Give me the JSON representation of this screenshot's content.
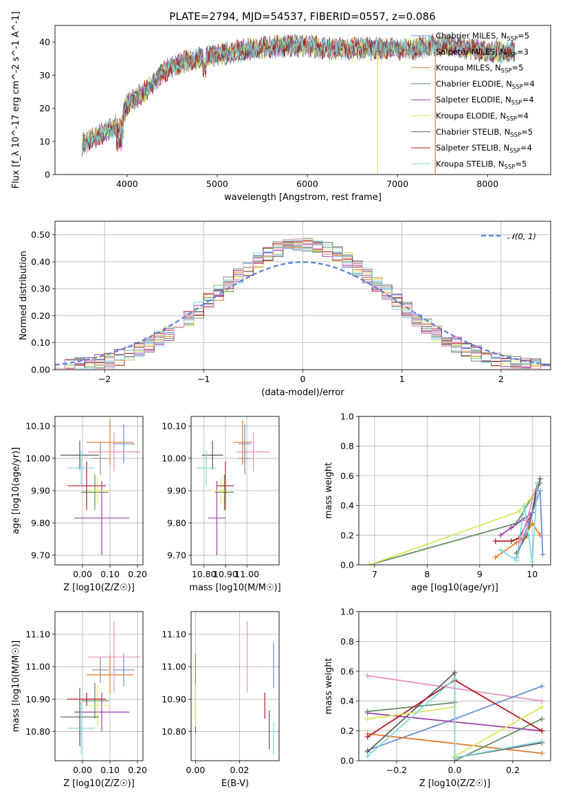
{
  "figure": {
    "title": "PLATE=2794, MJD=54537, FIBERID=0557, z=0.086"
  },
  "colors": {
    "c1": "#6a8fd6",
    "c2": "#8a8a8a",
    "c3": "#e07a2a",
    "c4": "#5e8e5e",
    "c5": "#9e3aaa",
    "c6": "#d6e85a",
    "c7": "#5a5a5a",
    "c8": "#b0181e",
    "c9": "#80d8dc",
    "c10": "#e890c0",
    "normal": "#5b82d6"
  },
  "chart_data": [
    {
      "id": "spectrum",
      "type": "line",
      "xlabel": "wavelength [Angstrom, rest frame]",
      "ylabel": "Flux [f_λ 10^-17 erg cm^-2 s^-1 A^-1]",
      "xlim": [
        3200,
        8700
      ],
      "ylim": [
        0,
        45
      ],
      "xticks": [
        4000,
        5000,
        6000,
        7000,
        8000
      ],
      "yticks": [
        0,
        10,
        20,
        30,
        40
      ],
      "x_range": [
        3500,
        8300
      ],
      "continuum": {
        "x": [
          3500,
          3700,
          3900,
          4000,
          4200,
          4400,
          4600,
          4800,
          5000,
          5200,
          5400,
          5600,
          5800,
          6000,
          6200,
          6400,
          6600,
          6800,
          7000,
          7200,
          7400,
          7600,
          7800,
          8000,
          8200,
          8300
        ],
        "y": [
          9,
          12,
          15,
          21,
          25,
          31,
          34,
          35,
          36,
          37,
          38,
          38.5,
          39,
          39,
          38,
          38,
          38,
          38,
          38,
          38,
          39,
          39,
          38,
          37,
          37,
          37
        ]
      },
      "legend": [
        {
          "label": "Chabrier MILES, N",
          "sub": "SSP",
          "suffix": "=5",
          "color": "c1"
        },
        {
          "label": "Salpeter MILES, N",
          "sub": "SSP",
          "suffix": "=3",
          "color": "c2"
        },
        {
          "label": "Kroupa MILES, N",
          "sub": "SSP",
          "suffix": "=5",
          "color": "c3"
        },
        {
          "label": "Chabrier ELODIE, N",
          "sub": "SSP",
          "suffix": "=4",
          "color": "c4"
        },
        {
          "label": "Salpeter ELODIE, N",
          "sub": "SSP",
          "suffix": "=4",
          "color": "c5"
        },
        {
          "label": "Kroupa ELODIE, N",
          "sub": "SSP",
          "suffix": "=4",
          "color": "c6"
        },
        {
          "label": "Chabrier STELIB, N",
          "sub": "SSP",
          "suffix": "=5",
          "color": "c7"
        },
        {
          "label": "Salpeter STELIB, N",
          "sub": "SSP",
          "suffix": "=4",
          "color": "c8"
        },
        {
          "label": "Kroupa STELIB, N",
          "sub": "SSP",
          "suffix": "=5",
          "color": "c9"
        }
      ],
      "dropouts": [
        {
          "x": 6780,
          "color": "c6"
        },
        {
          "x": 7420,
          "color": "c3"
        }
      ]
    },
    {
      "id": "residuals",
      "type": "histogram",
      "xlabel": "(data-model)/error",
      "ylabel": "Normed distribution",
      "xlim": [
        -2.5,
        2.5
      ],
      "ylim": [
        0,
        0.55
      ],
      "xticks": [
        -2,
        -1,
        0,
        1,
        2
      ],
      "yticks": [
        0.0,
        0.1,
        0.2,
        0.3,
        0.4,
        0.5
      ],
      "bins": [
        -2.5,
        2.5,
        50
      ],
      "legend": "𝒩(0, 1)",
      "series_colors": [
        "c1",
        "c2",
        "c3",
        "c4",
        "c5",
        "c6",
        "c7",
        "c8",
        "c9",
        "c10"
      ]
    },
    {
      "id": "age-vs-z",
      "type": "errorbar",
      "xlabel": "Z [log10(Z/Z☉)]",
      "ylabel": "age [log10(age/yr)]",
      "xlim": [
        -0.1,
        0.22
      ],
      "ylim": [
        9.67,
        10.13
      ],
      "xticks": [
        0.0,
        0.1,
        0.2
      ],
      "yticks": [
        9.7,
        9.8,
        9.9,
        10.0,
        10.1
      ],
      "points": [
        {
          "x": 0.15,
          "xerr": 0.04,
          "y": 10.045,
          "yerr": 0.06,
          "color": "c1"
        },
        {
          "x": 0.065,
          "xerr": 0.03,
          "y": 10.0,
          "yerr": 0.05,
          "color": "c2"
        },
        {
          "x": 0.1,
          "xerr": 0.085,
          "y": 10.05,
          "yerr": 0.07,
          "color": "c3"
        },
        {
          "x": 0.045,
          "xerr": 0.05,
          "y": 9.895,
          "yerr": 0.055,
          "color": "c4"
        },
        {
          "x": 0.07,
          "xerr": 0.1,
          "y": 9.815,
          "yerr": 0.115,
          "color": "c5"
        },
        {
          "x": 0.055,
          "xerr": 0.045,
          "y": 9.9,
          "yerr": 0.04,
          "color": "c6"
        },
        {
          "x": -0.01,
          "xerr": 0.07,
          "y": 10.01,
          "yerr": 0.045,
          "color": "c7"
        },
        {
          "x": 0.015,
          "xerr": 0.07,
          "y": 9.915,
          "yerr": 0.075,
          "color": "c8"
        },
        {
          "x": -0.005,
          "xerr": 0.05,
          "y": 9.97,
          "yerr": 0.055,
          "color": "c9"
        },
        {
          "x": 0.115,
          "xerr": 0.095,
          "y": 10.02,
          "yerr": 0.06,
          "color": "c10"
        }
      ]
    },
    {
      "id": "age-vs-mass",
      "type": "errorbar",
      "xlabel": "mass [log10(M/M☉)]",
      "ylabel": "",
      "xlim": [
        10.74,
        11.15
      ],
      "ylim": [
        9.67,
        10.13
      ],
      "xticks": [
        10.8,
        10.9,
        11.0
      ],
      "yticks": [
        9.7,
        9.8,
        9.9,
        10.0,
        10.1
      ],
      "points": [
        {
          "x": 10.99,
          "xerr": 0.03,
          "y": 10.045,
          "yerr": 0.06,
          "color": "c1"
        },
        {
          "x": 10.99,
          "xerr": 0.03,
          "y": 10.0,
          "yerr": 0.05,
          "color": "c2"
        },
        {
          "x": 10.98,
          "xerr": 0.045,
          "y": 10.05,
          "yerr": 0.07,
          "color": "c3"
        },
        {
          "x": 10.895,
          "xerr": 0.045,
          "y": 9.895,
          "yerr": 0.055,
          "color": "c4"
        },
        {
          "x": 10.86,
          "xerr": 0.04,
          "y": 9.815,
          "yerr": 0.115,
          "color": "c5"
        },
        {
          "x": 10.88,
          "xerr": 0.04,
          "y": 9.9,
          "yerr": 0.04,
          "color": "c6"
        },
        {
          "x": 10.84,
          "xerr": 0.05,
          "y": 10.01,
          "yerr": 0.045,
          "color": "c7"
        },
        {
          "x": 10.9,
          "xerr": 0.04,
          "y": 9.915,
          "yerr": 0.075,
          "color": "c8"
        },
        {
          "x": 10.81,
          "xerr": 0.045,
          "y": 9.97,
          "yerr": 0.055,
          "color": "c9"
        },
        {
          "x": 11.03,
          "xerr": 0.08,
          "y": 10.02,
          "yerr": 0.06,
          "color": "c10"
        }
      ]
    },
    {
      "id": "weight-vs-age",
      "type": "line",
      "xlabel": "age [log10(age/yr)]",
      "ylabel": "mass weight",
      "xlim": [
        6.7,
        10.35
      ],
      "ylim": [
        0,
        1
      ],
      "xticks": [
        7,
        8,
        9,
        10
      ],
      "yticks": [
        0.0,
        0.2,
        0.4,
        0.6,
        0.8,
        1.0
      ],
      "series": [
        {
          "color": "c4",
          "x": [
            6.9,
            9.7,
            10.15
          ],
          "y": [
            0.0,
            0.28,
            0.55
          ]
        },
        {
          "color": "c6",
          "x": [
            6.9,
            9.75,
            10.1
          ],
          "y": [
            0.0,
            0.36,
            0.5
          ]
        },
        {
          "color": "c5",
          "x": [
            9.4,
            9.6,
            9.8,
            10.0
          ],
          "y": [
            0.2,
            0.25,
            0.3,
            0.35
          ]
        },
        {
          "color": "c8",
          "x": [
            9.3,
            9.6,
            9.75,
            10.0,
            10.1
          ],
          "y": [
            0.16,
            0.16,
            0.18,
            0.35,
            0.55
          ]
        },
        {
          "color": "c7",
          "x": [
            9.7,
            9.9,
            10.15
          ],
          "y": [
            0.08,
            0.2,
            0.58
          ]
        },
        {
          "color": "c3",
          "x": [
            9.3,
            9.7,
            9.85,
            10.0,
            10.15
          ],
          "y": [
            0.05,
            0.15,
            0.18,
            0.28,
            0.2
          ]
        },
        {
          "color": "c1",
          "x": [
            9.7,
            9.85,
            10.0,
            10.15,
            10.2
          ],
          "y": [
            0.05,
            0.2,
            0.35,
            0.5,
            0.07
          ]
        },
        {
          "color": "c9",
          "x": [
            9.4,
            9.7,
            9.85,
            10.0,
            10.1
          ],
          "y": [
            0.1,
            0.03,
            0.4,
            0.02,
            0.55
          ]
        },
        {
          "color": "c10",
          "x": [
            9.75,
            9.9,
            10.05
          ],
          "y": [
            0.15,
            0.3,
            0.5
          ]
        }
      ]
    },
    {
      "id": "mass-vs-z",
      "type": "errorbar",
      "xlabel": "Z [log10(Z/Z☉)]",
      "ylabel": "mass [log10(M/M☉)]",
      "xlim": [
        -0.1,
        0.22
      ],
      "ylim": [
        10.71,
        11.17
      ],
      "xticks": [
        0.0,
        0.1,
        0.2
      ],
      "yticks": [
        10.8,
        10.9,
        11.0,
        11.1
      ],
      "points": [
        {
          "x": 0.15,
          "xerr": 0.04,
          "y": 10.99,
          "yerr": 0.05,
          "color": "c1"
        },
        {
          "x": 0.065,
          "xerr": 0.03,
          "y": 10.99,
          "yerr": 0.04,
          "color": "c2"
        },
        {
          "x": 0.1,
          "xerr": 0.085,
          "y": 10.975,
          "yerr": 0.06,
          "color": "c3"
        },
        {
          "x": 0.045,
          "xerr": 0.05,
          "y": 10.895,
          "yerr": 0.055,
          "color": "c4"
        },
        {
          "x": 0.07,
          "xerr": 0.1,
          "y": 10.86,
          "yerr": 0.06,
          "color": "c5"
        },
        {
          "x": 0.055,
          "xerr": 0.045,
          "y": 10.88,
          "yerr": 0.065,
          "color": "c6"
        },
        {
          "x": -0.01,
          "xerr": 0.07,
          "y": 10.845,
          "yerr": 0.09,
          "color": "c7"
        },
        {
          "x": 0.015,
          "xerr": 0.07,
          "y": 10.9,
          "yerr": 0.02,
          "color": "c8"
        },
        {
          "x": -0.005,
          "xerr": 0.05,
          "y": 10.81,
          "yerr": 0.08,
          "color": "c9"
        },
        {
          "x": 0.115,
          "xerr": 0.095,
          "y": 11.03,
          "yerr": 0.11,
          "color": "c10"
        }
      ]
    },
    {
      "id": "mass-vs-ebv",
      "type": "errorbar",
      "xlabel": "E(B-V)",
      "ylabel": "",
      "xlim": [
        -0.002,
        0.038
      ],
      "ylim": [
        10.71,
        11.17
      ],
      "xticks": [
        0.0,
        0.02
      ],
      "yticks": [
        10.8,
        10.9,
        11.0,
        11.1
      ],
      "points": [
        {
          "x": 0.0,
          "xerr": 0,
          "y": 10.99,
          "yerr": 0.05,
          "color": "c3"
        },
        {
          "x": 0.0,
          "xerr": 0,
          "y": 10.895,
          "yerr": 0.055,
          "color": "c4"
        },
        {
          "x": 0.0,
          "xerr": 0,
          "y": 10.86,
          "yerr": 0.065,
          "color": "c5"
        },
        {
          "x": 0.0,
          "xerr": 0,
          "y": 10.88,
          "yerr": 0.065,
          "color": "c6"
        },
        {
          "x": 0.0235,
          "xerr": 0,
          "y": 11.03,
          "yerr": 0.11,
          "color": "c10"
        },
        {
          "x": 0.0315,
          "xerr": 0,
          "y": 10.88,
          "yerr": 0.04,
          "color": "c8"
        },
        {
          "x": 0.0335,
          "xerr": 0,
          "y": 10.805,
          "yerr": 0.06,
          "color": "c7"
        },
        {
          "x": 0.0355,
          "xerr": 0,
          "y": 11.005,
          "yerr": 0.07,
          "color": "c1"
        },
        {
          "x": 0.0355,
          "xerr": 0,
          "y": 10.78,
          "yerr": 0.05,
          "color": "c9"
        }
      ]
    },
    {
      "id": "weight-vs-z",
      "type": "line",
      "xlabel": "Z [log10(Z/Z☉)]",
      "ylabel": "mass weight",
      "xlim": [
        -0.33,
        0.33
      ],
      "ylim": [
        0,
        1
      ],
      "xticks": [
        -0.2,
        0.0,
        0.2
      ],
      "yticks": [
        0.0,
        0.2,
        0.4,
        0.6,
        0.8,
        1.0
      ],
      "series": [
        {
          "color": "c10",
          "x": [
            -0.3,
            0.3
          ],
          "y": [
            0.57,
            0.4
          ]
        },
        {
          "color": "c1",
          "x": [
            -0.3,
            0.0,
            0.3
          ],
          "y": [
            0.07,
            0.28,
            0.5
          ]
        },
        {
          "color": "c5",
          "x": [
            -0.3,
            0.3
          ],
          "y": [
            0.32,
            0.2
          ]
        },
        {
          "color": "c3",
          "x": [
            -0.3,
            0.3
          ],
          "y": [
            0.18,
            0.05
          ]
        },
        {
          "color": "c4",
          "x": [
            -0.3,
            0.0,
            0.0,
            0.3
          ],
          "y": [
            0.33,
            0.39,
            0.0,
            0.28
          ]
        },
        {
          "color": "c7",
          "x": [
            -0.3,
            0.0,
            0.0,
            0.3
          ],
          "y": [
            0.06,
            0.59,
            0.02,
            0.12
          ]
        },
        {
          "color": "c8",
          "x": [
            -0.3,
            0.0,
            0.3
          ],
          "y": [
            0.16,
            0.54,
            0.2
          ]
        },
        {
          "color": "c6",
          "x": [
            -0.3,
            0.0,
            0.0,
            0.3
          ],
          "y": [
            0.28,
            0.36,
            0.03,
            0.36
          ]
        },
        {
          "color": "c9",
          "x": [
            -0.3,
            0.0,
            0.0,
            0.3
          ],
          "y": [
            0.03,
            0.55,
            0.02,
            0.13
          ]
        }
      ]
    }
  ]
}
